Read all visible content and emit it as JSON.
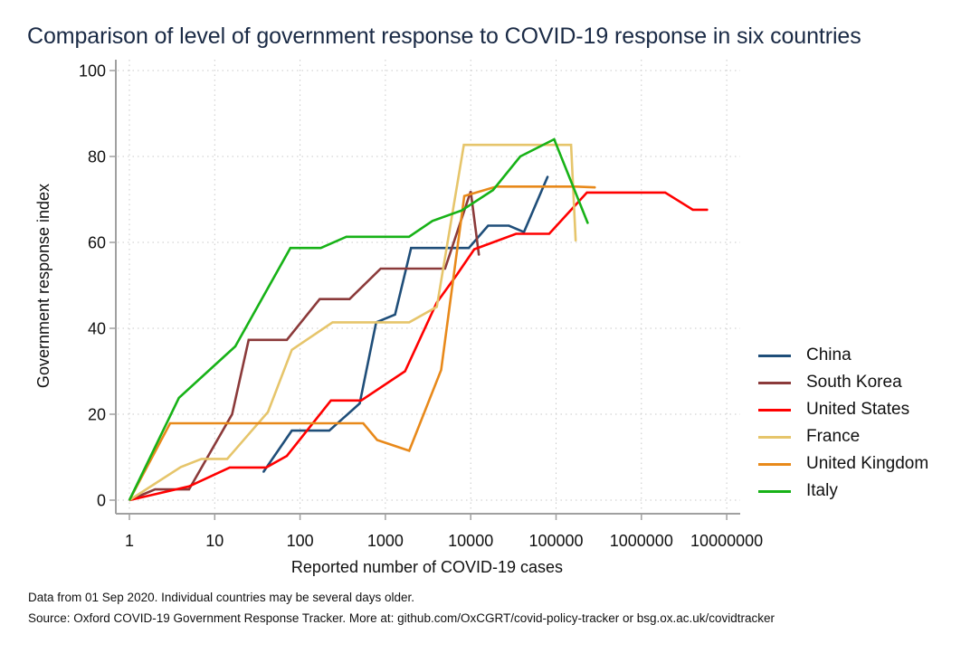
{
  "chart_data": {
    "type": "line",
    "title": "Comparison of level of government response to COVID-19 response in six countries",
    "xlabel": "Reported number of COVID-19 cases",
    "ylabel": "Government response index",
    "xscale": "log",
    "xlim": [
      1,
      10000000
    ],
    "ylim": [
      0,
      100
    ],
    "xticks": [
      1,
      10,
      100,
      1000,
      10000,
      100000,
      1000000,
      10000000
    ],
    "xtick_labels": [
      "1",
      "10",
      "100",
      "1000",
      "10000",
      "100000",
      "1000000",
      "10000000"
    ],
    "yticks": [
      0,
      20,
      40,
      60,
      80,
      100
    ],
    "ytick_labels": [
      "0",
      "20",
      "40",
      "60",
      "80",
      "100"
    ],
    "grid": true,
    "legend_position": "right",
    "series": [
      {
        "name": "China",
        "color": "#1f4e79",
        "points": [
          [
            37,
            6.5
          ],
          [
            80,
            16.2
          ],
          [
            220,
            16.2
          ],
          [
            500,
            22.5
          ],
          [
            780,
            41.4
          ],
          [
            1300,
            43.2
          ],
          [
            2000,
            58.7
          ],
          [
            9500,
            58.7
          ],
          [
            16000,
            63.9
          ],
          [
            28000,
            63.9
          ],
          [
            42000,
            62.4
          ],
          [
            80000,
            75.4
          ]
        ]
      },
      {
        "name": "South Korea",
        "color": "#8b3a3a",
        "points": [
          [
            1,
            0
          ],
          [
            2,
            2.5
          ],
          [
            5,
            2.5
          ],
          [
            16,
            20
          ],
          [
            25,
            37.3
          ],
          [
            70,
            37.3
          ],
          [
            170,
            46.8
          ],
          [
            380,
            46.8
          ],
          [
            880,
            53.9
          ],
          [
            5000,
            53.9
          ],
          [
            10000,
            71.9
          ],
          [
            12500,
            57
          ]
        ]
      },
      {
        "name": "United States",
        "color": "#ff0000",
        "points": [
          [
            1,
            0
          ],
          [
            5,
            3.2
          ],
          [
            15,
            7.6
          ],
          [
            40,
            7.6
          ],
          [
            70,
            10.3
          ],
          [
            230,
            23.2
          ],
          [
            520,
            23.2
          ],
          [
            1700,
            30
          ],
          [
            4000,
            46
          ],
          [
            6900,
            52.5
          ],
          [
            11000,
            58.4
          ],
          [
            34000,
            62
          ],
          [
            83000,
            62
          ],
          [
            230000,
            71.6
          ],
          [
            1900000,
            71.6
          ],
          [
            4000000,
            67.6
          ],
          [
            6000000,
            67.6
          ]
        ]
      },
      {
        "name": "France",
        "color": "#e6c56b",
        "points": [
          [
            1,
            0
          ],
          [
            4,
            7.7
          ],
          [
            7,
            9.6
          ],
          [
            14,
            9.6
          ],
          [
            42,
            20.5
          ],
          [
            80,
            35
          ],
          [
            240,
            41.4
          ],
          [
            1900,
            41.4
          ],
          [
            4000,
            45
          ],
          [
            8300,
            82.7
          ],
          [
            150000,
            82.7
          ],
          [
            170000,
            60.3
          ]
        ]
      },
      {
        "name": "United Kingdom",
        "color": "#e8891a",
        "points": [
          [
            1,
            0
          ],
          [
            3,
            17.9
          ],
          [
            550,
            17.9
          ],
          [
            800,
            14
          ],
          [
            1900,
            11.5
          ],
          [
            4500,
            30.3
          ],
          [
            8400,
            70.8
          ],
          [
            20000,
            73
          ],
          [
            170000,
            73
          ],
          [
            290000,
            72.8
          ]
        ]
      },
      {
        "name": "Italy",
        "color": "#17b217",
        "points": [
          [
            1,
            0
          ],
          [
            3.8,
            23.8
          ],
          [
            17.4,
            35.8
          ],
          [
            77,
            58.7
          ],
          [
            175,
            58.7
          ],
          [
            348,
            61.3
          ],
          [
            1890,
            61.3
          ],
          [
            3560,
            65
          ],
          [
            7800,
            67.4
          ],
          [
            18300,
            72.2
          ],
          [
            38000,
            80
          ],
          [
            95000,
            84
          ],
          [
            236000,
            64.4
          ]
        ]
      }
    ]
  },
  "notes": {
    "line1": "Data from 01 Sep 2020. Individual countries may be several days older.",
    "line2": "Source: Oxford COVID-19 Government Response Tracker. More at: github.com/OxCGRT/covid-policy-tracker or bsg.ox.ac.uk/covidtracker"
  }
}
